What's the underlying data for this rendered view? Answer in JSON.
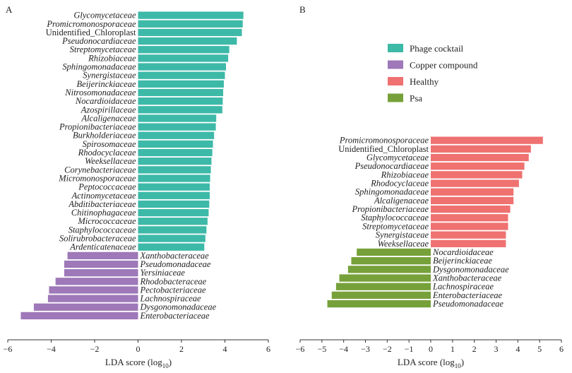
{
  "chart_data": [
    {
      "type": "bar",
      "orientation": "horizontal",
      "panel_label": "A",
      "xlabel": "LDA score (log",
      "xlabel_sub": "10",
      "xlabel_close": ")",
      "xlim": [
        -6,
        6
      ],
      "xticks": [
        "−6",
        "−4",
        "−2",
        "0",
        "2",
        "4",
        "6"
      ],
      "groups": [
        {
          "name": "Phage cocktail",
          "color": "#3db9a8",
          "categories": [
            "Glycomycetaceae",
            "Promicromonosporaceae",
            "Unidentified_Chloroplast",
            "Pseudonocardiaceae",
            "Streptomycetaceae",
            "Rhizobiaceae",
            "Sphingomonadaceae",
            "Synergistaceae",
            "Beijerinckiaceae",
            "Nitrosomonadaceae",
            "Nocardioidaceae",
            "Azospirillaceae",
            "Alcaligenaceae",
            "Propionibacteriaceae",
            "Burkholderiaceae",
            "Spirosomaceae",
            "Rhodocyclaceae",
            "Weeksellaceae",
            "Corynebacteriaceae",
            "Micromonosporaceae",
            "Peptococcaceae",
            "Actinomycetaceae",
            "Abditibacteriaceae",
            "Chitinophagaceae",
            "Micrococcaceae",
            "Staphylococcaceae",
            "Solirubrobacteraceae",
            "Ardenticatenaceae"
          ],
          "values": [
            4.85,
            4.82,
            4.78,
            4.55,
            4.2,
            4.15,
            4.05,
            4.0,
            3.95,
            3.92,
            3.9,
            3.88,
            3.6,
            3.58,
            3.5,
            3.45,
            3.42,
            3.38,
            3.35,
            3.32,
            3.3,
            3.3,
            3.28,
            3.25,
            3.2,
            3.15,
            3.1,
            3.05
          ]
        },
        {
          "name": "Copper compound",
          "color": "#9e78b8",
          "categories": [
            "Xanthobacteraceae",
            "Pseudomonadaceae",
            "Yersiniaceae",
            "Rhodobacteraceae",
            "Pectobacteriaceae",
            "Lachnospiraceae",
            "Dysgonomonadaceae",
            "Enterobacteriaceae"
          ],
          "values": [
            -3.25,
            -3.4,
            -3.4,
            -3.8,
            -4.1,
            -4.15,
            -4.8,
            -5.4
          ]
        }
      ]
    },
    {
      "type": "bar",
      "orientation": "horizontal",
      "panel_label": "B",
      "xlabel": "LDA score (log",
      "xlabel_sub": "10",
      "xlabel_close": ")",
      "xlim": [
        -6,
        6
      ],
      "xticks": [
        "−6",
        "−5",
        "−4",
        "−3",
        "−2",
        "−1",
        "0",
        "1",
        "2",
        "3",
        "4",
        "5",
        "6"
      ],
      "groups": [
        {
          "name": "Healthy",
          "color": "#ef7170",
          "categories": [
            "Promicromonosporaceae",
            "Unidentified_Chloroplast",
            "Glycomycetaceae",
            "Pseudonocardiaceae",
            "Rhizobiaceae",
            "Rhodocyclaceae",
            "Sphingomonadaceae",
            "Alcaligenaceae",
            "Propionibacteriaceae",
            "Staphylococcaceae",
            "Streptomycetaceae",
            "Synergistaceae",
            "Weeksellaceae"
          ],
          "values": [
            5.15,
            4.6,
            4.5,
            4.3,
            4.2,
            4.05,
            3.8,
            3.8,
            3.65,
            3.55,
            3.55,
            3.45,
            3.45
          ]
        },
        {
          "name": "Psa",
          "color": "#76a13a",
          "categories": [
            "Nocardioidaceae",
            "Beijerinckiaceae",
            "Dysgonomonadaceae",
            "Xanthobacteraceae",
            "Lachnospiraceae",
            "Enterobacteriaceae",
            "Pseudomonadaceae"
          ],
          "values": [
            -3.4,
            -3.65,
            -3.8,
            -4.2,
            -4.35,
            -4.55,
            -4.75
          ]
        }
      ]
    }
  ],
  "legend": [
    {
      "label": "Phage cocktail",
      "color": "#3db9a8"
    },
    {
      "label": "Copper compound",
      "color": "#9e78b8"
    },
    {
      "label": "Healthy",
      "color": "#ef7170"
    },
    {
      "label": "Psa",
      "color": "#76a13a"
    }
  ]
}
